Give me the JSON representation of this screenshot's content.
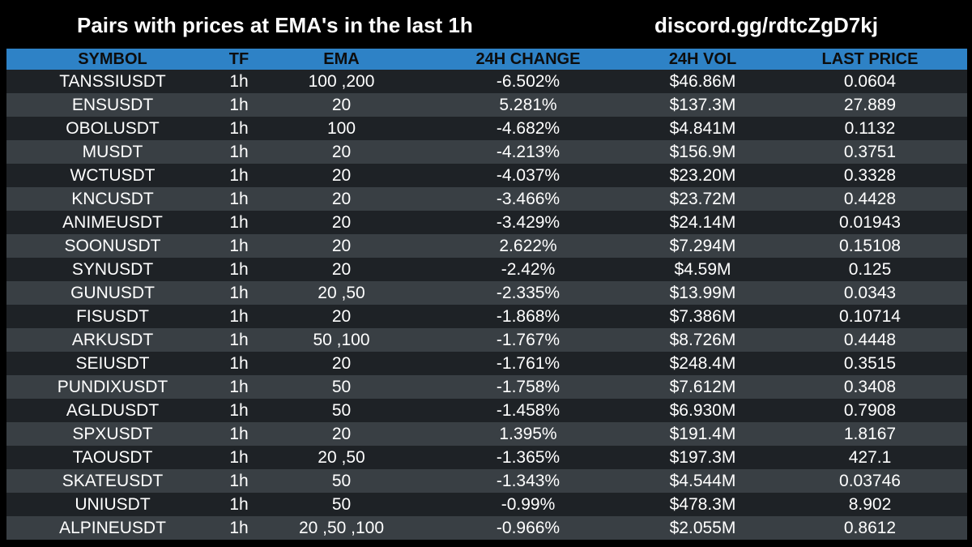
{
  "header": {
    "title": "Pairs with prices at EMA's in the last 1h",
    "link": "discord.gg/rdtcZgD7kj"
  },
  "table": {
    "columns": [
      "SYMBOL",
      "TF",
      "EMA",
      "24H CHANGE",
      "24H VOL",
      "LAST PRICE"
    ],
    "rows": [
      [
        "TANSSIUSDT",
        "1h",
        "100 ,200",
        "-6.502%",
        "$46.86M",
        "0.0604"
      ],
      [
        "ENSUSDT",
        "1h",
        "20",
        "5.281%",
        "$137.3M",
        "27.889"
      ],
      [
        "OBOLUSDT",
        "1h",
        "100",
        "-4.682%",
        "$4.841M",
        "0.1132"
      ],
      [
        "MUSDT",
        "1h",
        "20",
        "-4.213%",
        "$156.9M",
        "0.3751"
      ],
      [
        "WCTUSDT",
        "1h",
        "20",
        "-4.037%",
        "$23.20M",
        "0.3328"
      ],
      [
        "KNCUSDT",
        "1h",
        "20",
        "-3.466%",
        "$23.72M",
        "0.4428"
      ],
      [
        "ANIMEUSDT",
        "1h",
        "20",
        "-3.429%",
        "$24.14M",
        "0.01943"
      ],
      [
        "SOONUSDT",
        "1h",
        "20",
        "2.622%",
        "$7.294M",
        "0.15108"
      ],
      [
        "SYNUSDT",
        "1h",
        "20",
        "-2.42%",
        "$4.59M",
        "0.125"
      ],
      [
        "GUNUSDT",
        "1h",
        "20 ,50",
        "-2.335%",
        "$13.99M",
        "0.0343"
      ],
      [
        "FISUSDT",
        "1h",
        "20",
        "-1.868%",
        "$7.386M",
        "0.10714"
      ],
      [
        "ARKUSDT",
        "1h",
        "50 ,100",
        "-1.767%",
        "$8.726M",
        "0.4448"
      ],
      [
        "SEIUSDT",
        "1h",
        "20",
        "-1.761%",
        "$248.4M",
        "0.3515"
      ],
      [
        "PUNDIXUSDT",
        "1h",
        "50",
        "-1.758%",
        "$7.612M",
        "0.3408"
      ],
      [
        "AGLDUSDT",
        "1h",
        "50",
        "-1.458%",
        "$6.930M",
        "0.7908"
      ],
      [
        "SPXUSDT",
        "1h",
        "20",
        "1.395%",
        "$191.4M",
        "1.8167"
      ],
      [
        "TAOUSDT",
        "1h",
        "20 ,50",
        "-1.365%",
        "$197.3M",
        "427.1"
      ],
      [
        "SKATEUSDT",
        "1h",
        "50",
        "-1.343%",
        "$4.544M",
        "0.03746"
      ],
      [
        "UNIUSDT",
        "1h",
        "50",
        "-0.99%",
        "$478.3M",
        "8.902"
      ],
      [
        "ALPINEUSDT",
        "1h",
        "20 ,50 ,100",
        "-0.966%",
        "$2.055M",
        "0.8612"
      ]
    ]
  },
  "colors": {
    "background": "#000000",
    "header_bar": "#2e82c6",
    "row_dark": "#1e2226",
    "row_light": "#393f44",
    "text": "#ffffff"
  }
}
